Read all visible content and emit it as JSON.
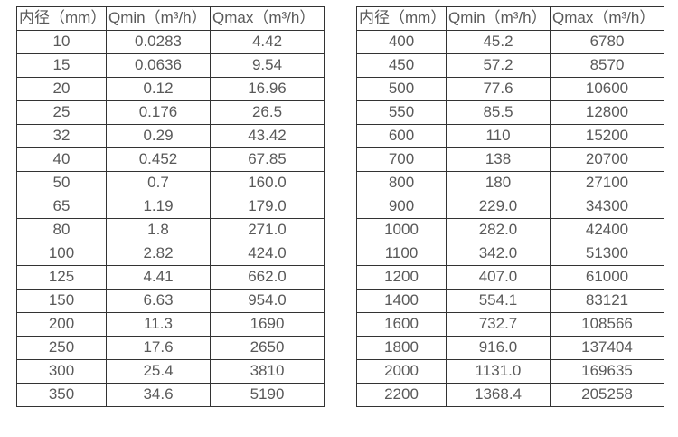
{
  "page": {
    "background_color": "#ffffff",
    "border_color": "#333333",
    "text_color": "#595959"
  },
  "chart_data": [
    {
      "type": "table",
      "name": "flow-rate-table-small-diameters",
      "columns": [
        "内径（mm）",
        "Qmin（m³/h）",
        "Qmax（m³/h）"
      ],
      "rows": [
        [
          "10",
          "0.0283",
          "4.42"
        ],
        [
          "15",
          "0.0636",
          "9.54"
        ],
        [
          "20",
          "0.12",
          "16.96"
        ],
        [
          "25",
          "0.176",
          "26.5"
        ],
        [
          "32",
          "0.29",
          "43.42"
        ],
        [
          "40",
          "0.452",
          "67.85"
        ],
        [
          "50",
          "0.7",
          "160.0"
        ],
        [
          "65",
          "1.19",
          "179.0"
        ],
        [
          "80",
          "1.8",
          "271.0"
        ],
        [
          "100",
          "2.82",
          "424.0"
        ],
        [
          "125",
          "4.41",
          "662.0"
        ],
        [
          "150",
          "6.63",
          "954.0"
        ],
        [
          "200",
          "11.3",
          "1690"
        ],
        [
          "250",
          "17.6",
          "2650"
        ],
        [
          "300",
          "25.4",
          "3810"
        ],
        [
          "350",
          "34.6",
          "5190"
        ]
      ]
    },
    {
      "type": "table",
      "name": "flow-rate-table-large-diameters",
      "columns": [
        "内径（mm）",
        "Qmin（m³/h）",
        "Qmax（m³/h）"
      ],
      "rows": [
        [
          "400",
          "45.2",
          "6780"
        ],
        [
          "450",
          "57.2",
          "8570"
        ],
        [
          "500",
          "77.6",
          "10600"
        ],
        [
          "550",
          "85.5",
          "12800"
        ],
        [
          "600",
          "110",
          "15200"
        ],
        [
          "700",
          "138",
          "20700"
        ],
        [
          "800",
          "180",
          "27100"
        ],
        [
          "900",
          "229.0",
          "34300"
        ],
        [
          "1000",
          "282.0",
          "42400"
        ],
        [
          "1100",
          "342.0",
          "51300"
        ],
        [
          "1200",
          "407.0",
          "61000"
        ],
        [
          "1400",
          "554.1",
          "83121"
        ],
        [
          "1600",
          "732.7",
          "108566"
        ],
        [
          "1800",
          "916.0",
          "137404"
        ],
        [
          "2000",
          "1131.0",
          "169635"
        ],
        [
          "2200",
          "1368.4",
          "205258"
        ]
      ]
    }
  ]
}
